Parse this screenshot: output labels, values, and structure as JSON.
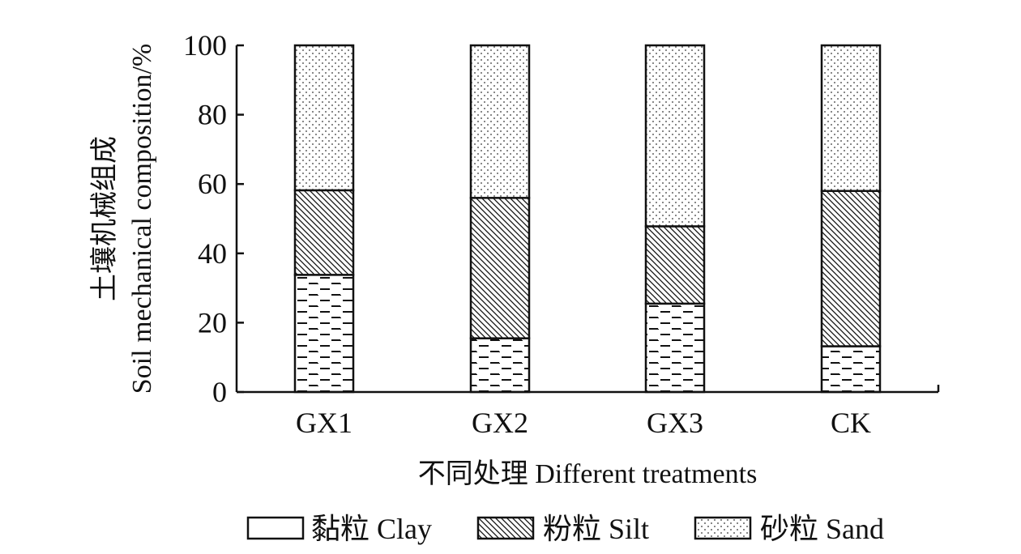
{
  "chart_data": {
    "type": "bar",
    "stacked": true,
    "categories": [
      "GX1",
      "GX2",
      "GX3",
      "CK"
    ],
    "series": [
      {
        "name": "黏粒 Clay",
        "values": [
          33.8,
          15.5,
          25.5,
          13.2
        ]
      },
      {
        "name": "粉粒 Silt",
        "values": [
          24.4,
          40.5,
          22.3,
          44.8
        ]
      },
      {
        "name": "砂粒 Sand",
        "values": [
          41.8,
          44.0,
          52.2,
          42.0
        ]
      }
    ],
    "xlabel": "不同处理 Different treatments",
    "ylabel_cn": "土壤机械组成",
    "ylabel": "Soil mechanical composition/%",
    "ylim": [
      0,
      100
    ],
    "yticks": [
      "0",
      "20",
      "40",
      "60",
      "80",
      "100"
    ],
    "legend_position": "bottom",
    "grid": false
  }
}
